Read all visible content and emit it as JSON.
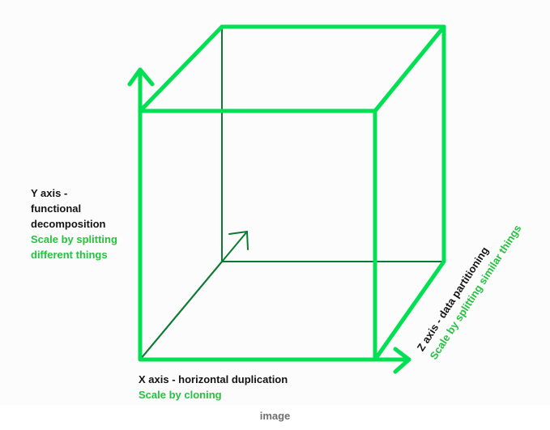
{
  "colors": {
    "edge": "#00e052",
    "inner_edge": "#0c7a33",
    "label_dark": "#141414",
    "label_green": "#23c23f",
    "caption": "#6e6e6e"
  },
  "y_axis": {
    "title_lines": [
      "Y axis -",
      "functional",
      "decomposition"
    ],
    "subtitle_lines": [
      "Scale by splitting",
      "different things"
    ]
  },
  "x_axis": {
    "title": "X axis - horizontal duplication",
    "subtitle": "Scale by cloning"
  },
  "z_axis": {
    "title": "Z axis - data partitioning",
    "subtitle": "Scale by splitting similar things"
  },
  "caption": "image"
}
